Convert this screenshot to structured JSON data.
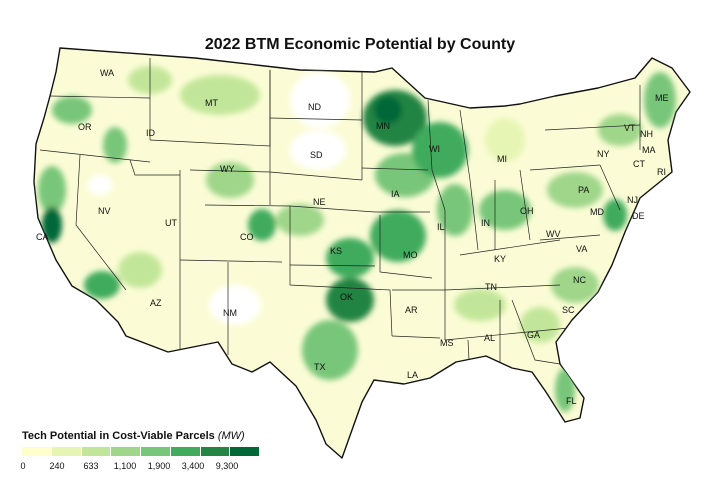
{
  "title": "2022 BTM Economic Potential by County",
  "legend": {
    "title": "Tech Potential in Cost-Viable Parcels",
    "unit": "(MW)",
    "ticks": [
      "0",
      "240",
      "633",
      "1,100",
      "1,900",
      "3,400",
      "9,300"
    ],
    "colors": [
      "#ffffcc",
      "#e6f5b3",
      "#c2e699",
      "#9fd68a",
      "#78c679",
      "#41ab5d",
      "#238443",
      "#006837"
    ]
  },
  "state_labels": [
    "WA",
    "OR",
    "CA",
    "NV",
    "ID",
    "MT",
    "WY",
    "UT",
    "AZ",
    "NM",
    "CO",
    "ND",
    "SD",
    "NE",
    "KS",
    "OK",
    "TX",
    "MN",
    "IA",
    "MO",
    "AR",
    "LA",
    "WI",
    "IL",
    "MI",
    "IN",
    "OH",
    "KY",
    "TN",
    "MS",
    "AL",
    "GA",
    "FL",
    "SC",
    "NC",
    "VA",
    "WV",
    "PA",
    "NY",
    "VT",
    "NH",
    "ME",
    "MA",
    "CT",
    "RI",
    "NJ",
    "DE",
    "MD"
  ]
}
